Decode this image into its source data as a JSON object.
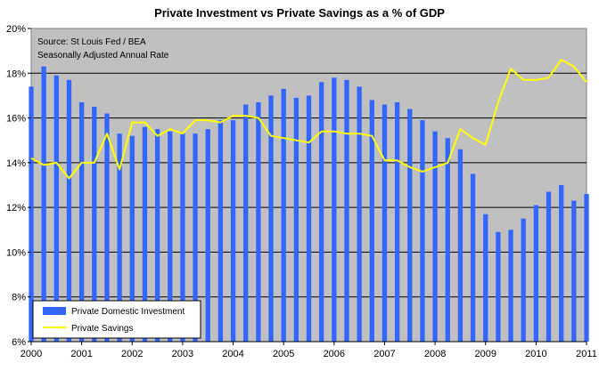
{
  "chart_data": {
    "type": "bar",
    "title": "Private Investment vs Private Savings as a % of GDP",
    "annotations": [
      "Source: St Louis Fed / BEA",
      "Seasonally Adjusted Annual Rate"
    ],
    "ylim": [
      6,
      20
    ],
    "y_ticks": [
      "6%",
      "8%",
      "10%",
      "12%",
      "14%",
      "16%",
      "18%",
      "20%"
    ],
    "y_tick_values": [
      6,
      8,
      10,
      12,
      14,
      16,
      18,
      20
    ],
    "x_range": [
      2000,
      2011
    ],
    "x_ticks": [
      "2000",
      "2001",
      "2002",
      "2003",
      "2004",
      "2005",
      "2006",
      "2007",
      "2008",
      "2009",
      "2010",
      "2011"
    ],
    "x_tick_values": [
      2000,
      2001,
      2002,
      2003,
      2004,
      2005,
      2006,
      2007,
      2008,
      2009,
      2010,
      2011
    ],
    "grid": "horizontal",
    "legend_position": "bottom-left",
    "background_color": "#c0c0c0",
    "series": [
      {
        "name": "Private Domestic Investment",
        "type": "bar",
        "color": "#3366ff",
        "x": [
          2000.0,
          2000.25,
          2000.5,
          2000.75,
          2001.0,
          2001.25,
          2001.5,
          2001.75,
          2002.0,
          2002.25,
          2002.5,
          2002.75,
          2003.0,
          2003.25,
          2003.5,
          2003.75,
          2004.0,
          2004.25,
          2004.5,
          2004.75,
          2005.0,
          2005.25,
          2005.5,
          2005.75,
          2006.0,
          2006.25,
          2006.5,
          2006.75,
          2007.0,
          2007.25,
          2007.5,
          2007.75,
          2008.0,
          2008.25,
          2008.5,
          2008.75,
          2009.0,
          2009.25,
          2009.5,
          2009.75,
          2010.0,
          2010.25,
          2010.5,
          2010.75,
          2011.0
        ],
        "values": [
          17.4,
          18.3,
          17.9,
          17.7,
          16.7,
          16.5,
          16.2,
          15.3,
          15.2,
          15.6,
          15.5,
          15.4,
          15.3,
          15.3,
          15.5,
          15.9,
          15.9,
          16.6,
          16.7,
          17.0,
          17.3,
          16.9,
          17.0,
          17.6,
          17.8,
          17.7,
          17.4,
          16.8,
          16.6,
          16.7,
          16.4,
          15.9,
          15.4,
          15.1,
          14.6,
          13.5,
          11.7,
          10.9,
          11.0,
          11.5,
          12.1,
          12.7,
          13.0,
          12.3,
          12.6
        ]
      },
      {
        "name": "Private Savings",
        "type": "line",
        "color": "#ffff00",
        "x": [
          2000.0,
          2000.25,
          2000.5,
          2000.75,
          2001.0,
          2001.25,
          2001.5,
          2001.75,
          2002.0,
          2002.25,
          2002.5,
          2002.75,
          2003.0,
          2003.25,
          2003.5,
          2003.75,
          2004.0,
          2004.25,
          2004.5,
          2004.75,
          2005.0,
          2005.25,
          2005.5,
          2005.75,
          2006.0,
          2006.25,
          2006.5,
          2006.75,
          2007.0,
          2007.25,
          2007.5,
          2007.75,
          2008.0,
          2008.25,
          2008.5,
          2008.75,
          2009.0,
          2009.25,
          2009.5,
          2009.75,
          2010.0,
          2010.25,
          2010.5,
          2010.75,
          2011.0
        ],
        "values": [
          14.2,
          13.9,
          14.0,
          13.3,
          14.0,
          14.0,
          15.3,
          13.7,
          15.8,
          15.8,
          15.2,
          15.5,
          15.3,
          15.9,
          15.9,
          15.8,
          16.1,
          16.1,
          16.0,
          15.2,
          15.1,
          15.0,
          14.9,
          15.4,
          15.4,
          15.3,
          15.3,
          15.2,
          14.1,
          14.1,
          13.8,
          13.6,
          13.8,
          14.0,
          15.5,
          15.1,
          14.8,
          16.7,
          18.2,
          17.7,
          17.7,
          17.8,
          18.6,
          18.3,
          17.6
        ]
      }
    ]
  }
}
